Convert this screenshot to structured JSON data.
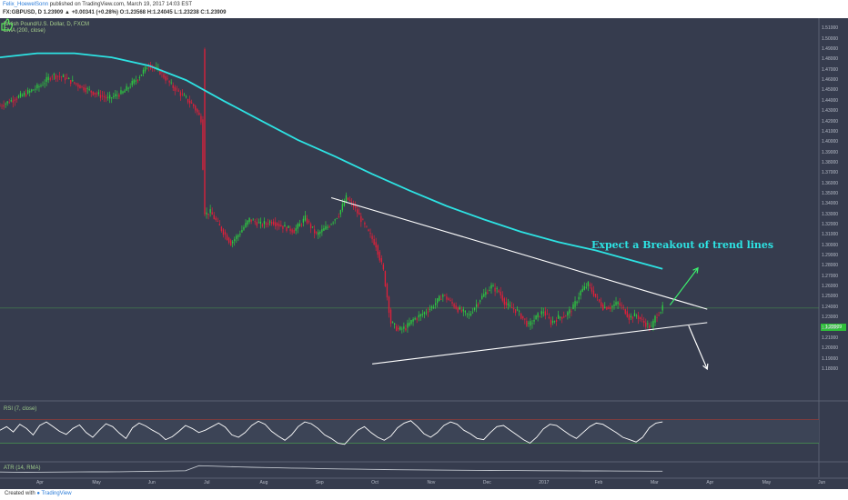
{
  "header": {
    "author": "Felix_HoewelSonn",
    "published_text": "published on TradingView.com, March 19, 2017 14:03 EST",
    "symbol_line": "FX:GBPUSD, D 1.23909 ▲ +0.00341 (+0.28%) O:1.23568 H:1.24045 L:1.23238 C:1.23909"
  },
  "panes": {
    "main_title": "British Pound/U.S. Dollar, D, FXCM",
    "ema_label": "EMA (200, close)",
    "rsi_label": "RSI (7, close)",
    "atr_label": "ATR (14, RMA)"
  },
  "annotation": {
    "text": "Expect a Breakout of trend lines",
    "icon": "thumbs-up-icon",
    "color": "#2de3e3"
  },
  "footer": {
    "created_with": "Created with",
    "brand": "TradingView"
  },
  "colors": {
    "background": "#363c4e",
    "up": "#2ecc40",
    "down": "#e0203a",
    "ema": "#2de3e3",
    "rsi": "#ffffff",
    "trend_line": "#ffffff",
    "up_arrow": "#3df26e",
    "guide_line": "#4fc04f"
  },
  "chart_data": {
    "type": "candlestick",
    "symbol": "FX:GBPUSD",
    "interval": "D",
    "last": 1.23909,
    "open": 1.23568,
    "high": 1.24045,
    "low": 1.23238,
    "close": 1.23909,
    "change": 0.00341,
    "change_pct": 0.28,
    "current_price_label": "1.23909",
    "ylim": [
      1.15,
      1.52
    ],
    "y_ticks": [
      "1.51000",
      "1.50000",
      "1.49000",
      "1.48000",
      "1.47000",
      "1.46000",
      "1.45000",
      "1.44000",
      "1.43000",
      "1.42000",
      "1.41000",
      "1.40000",
      "1.39000",
      "1.38000",
      "1.37000",
      "1.36000",
      "1.35000",
      "1.34000",
      "1.33000",
      "1.32000",
      "1.31000",
      "1.30000",
      "1.29000",
      "1.28000",
      "1.27000",
      "1.26000",
      "1.25000",
      "1.24000",
      "1.23000",
      "1.22000",
      "1.21000",
      "1.20000",
      "1.19000",
      "1.18000"
    ],
    "x_ticks": [
      "Apr",
      "May",
      "Jun",
      "Jul",
      "Aug",
      "Sep",
      "Oct",
      "Nov",
      "Dec",
      "2017",
      "Feb",
      "Mar",
      "Apr",
      "May",
      "Jun"
    ],
    "price_path": [
      [
        0,
        1.435
      ],
      [
        8,
        1.442
      ],
      [
        14,
        1.447
      ],
      [
        22,
        1.455
      ],
      [
        28,
        1.465
      ],
      [
        35,
        1.462
      ],
      [
        42,
        1.455
      ],
      [
        50,
        1.448
      ],
      [
        58,
        1.442
      ],
      [
        66,
        1.448
      ],
      [
        74,
        1.462
      ],
      [
        80,
        1.475
      ],
      [
        86,
        1.468
      ],
      [
        92,
        1.455
      ],
      [
        98,
        1.445
      ],
      [
        104,
        1.435
      ],
      [
        108,
        1.422
      ],
      [
        110,
        1.33
      ],
      [
        113,
        1.332
      ],
      [
        118,
        1.318
      ],
      [
        124,
        1.302
      ],
      [
        128,
        1.31
      ],
      [
        134,
        1.325
      ],
      [
        140,
        1.32
      ],
      [
        146,
        1.323
      ],
      [
        152,
        1.318
      ],
      [
        158,
        1.314
      ],
      [
        164,
        1.326
      ],
      [
        170,
        1.31
      ],
      [
        176,
        1.318
      ],
      [
        182,
        1.33
      ],
      [
        186,
        1.346
      ],
      [
        190,
        1.338
      ],
      [
        194,
        1.325
      ],
      [
        198,
        1.312
      ],
      [
        202,
        1.3
      ],
      [
        206,
        1.275
      ],
      [
        210,
        1.225
      ],
      [
        214,
        1.218
      ],
      [
        218,
        1.22
      ],
      [
        222,
        1.228
      ],
      [
        226,
        1.232
      ],
      [
        232,
        1.24
      ],
      [
        238,
        1.252
      ],
      [
        242,
        1.245
      ],
      [
        246,
        1.238
      ],
      [
        252,
        1.232
      ],
      [
        258,
        1.248
      ],
      [
        264,
        1.26
      ],
      [
        268,
        1.255
      ],
      [
        272,
        1.242
      ],
      [
        278,
        1.236
      ],
      [
        284,
        1.222
      ],
      [
        288,
        1.23
      ],
      [
        292,
        1.236
      ],
      [
        296,
        1.225
      ],
      [
        300,
        1.23
      ],
      [
        304,
        1.232
      ],
      [
        308,
        1.24
      ],
      [
        312,
        1.255
      ],
      [
        316,
        1.262
      ],
      [
        320,
        1.25
      ],
      [
        324,
        1.24
      ],
      [
        328,
        1.24
      ],
      [
        332,
        1.244
      ],
      [
        336,
        1.236
      ],
      [
        338,
        1.23
      ],
      [
        342,
        1.232
      ],
      [
        346,
        1.225
      ],
      [
        350,
        1.22
      ],
      [
        352,
        1.23
      ],
      [
        356,
        1.239
      ]
    ],
    "ema200": [
      [
        0,
        1.482
      ],
      [
        20,
        1.486
      ],
      [
        40,
        1.486
      ],
      [
        60,
        1.482
      ],
      [
        80,
        1.474
      ],
      [
        100,
        1.46
      ],
      [
        120,
        1.44
      ],
      [
        140,
        1.421
      ],
      [
        160,
        1.402
      ],
      [
        180,
        1.386
      ],
      [
        200,
        1.369
      ],
      [
        220,
        1.353
      ],
      [
        240,
        1.338
      ],
      [
        260,
        1.325
      ],
      [
        280,
        1.313
      ],
      [
        300,
        1.303
      ],
      [
        320,
        1.295
      ],
      [
        340,
        1.285
      ],
      [
        356,
        1.277
      ]
    ],
    "trend_lines": [
      {
        "name": "resistance",
        "from": [
          178,
          1.346
        ],
        "to": [
          380,
          1.238
        ]
      },
      {
        "name": "support",
        "from": [
          200,
          1.185
        ],
        "to": [
          380,
          1.225
        ]
      }
    ],
    "arrows": [
      {
        "name": "breakout-up",
        "from": [
          360,
          1.242
        ],
        "to": [
          375,
          1.278
        ]
      },
      {
        "name": "breakout-down",
        "from": [
          370,
          1.222
        ],
        "to": [
          380,
          1.18
        ]
      }
    ],
    "rsi": {
      "period": 7,
      "levels": [
        70,
        30
      ],
      "ylim": [
        0,
        100
      ],
      "values": [
        52,
        58,
        49,
        62,
        55,
        44,
        60,
        66,
        58,
        50,
        45,
        55,
        61,
        48,
        40,
        52,
        63,
        58,
        47,
        38,
        56,
        64,
        59,
        52,
        46,
        36,
        41,
        50,
        60,
        55,
        48,
        52,
        58,
        64,
        57,
        44,
        40,
        48,
        60,
        67,
        62,
        50,
        42,
        35,
        44,
        58,
        66,
        63,
        55,
        44,
        38,
        30,
        28,
        40,
        52,
        58,
        48,
        40,
        35,
        42,
        56,
        64,
        68,
        58,
        46,
        40,
        48,
        60,
        66,
        62,
        52,
        46,
        38,
        36,
        48,
        58,
        60,
        52,
        44,
        36,
        30,
        40,
        54,
        62,
        60,
        52,
        44,
        38,
        48,
        58,
        64,
        62,
        55,
        48,
        40,
        36,
        32,
        40,
        56,
        64,
        66
      ]
    },
    "atr": {
      "period": 14,
      "ylim": [
        0,
        0.025
      ],
      "values": [
        0.009,
        0.0088,
        0.0086,
        0.0087,
        0.0089,
        0.0091,
        0.0092,
        0.0093,
        0.0094,
        0.0096,
        0.0099,
        0.0101,
        0.0104,
        0.0108,
        0.0112,
        0.0198,
        0.0192,
        0.0185,
        0.0178,
        0.0172,
        0.0167,
        0.0162,
        0.0158,
        0.0154,
        0.015,
        0.0146,
        0.0142,
        0.0139,
        0.0136,
        0.0133,
        0.013,
        0.0128,
        0.0126,
        0.0124,
        0.0122,
        0.012,
        0.0118,
        0.0117,
        0.0116,
        0.0115,
        0.0114,
        0.0113,
        0.0112,
        0.0111,
        0.011,
        0.0109,
        0.0108,
        0.0107,
        0.0106,
        0.0105,
        0.0104
      ]
    }
  }
}
